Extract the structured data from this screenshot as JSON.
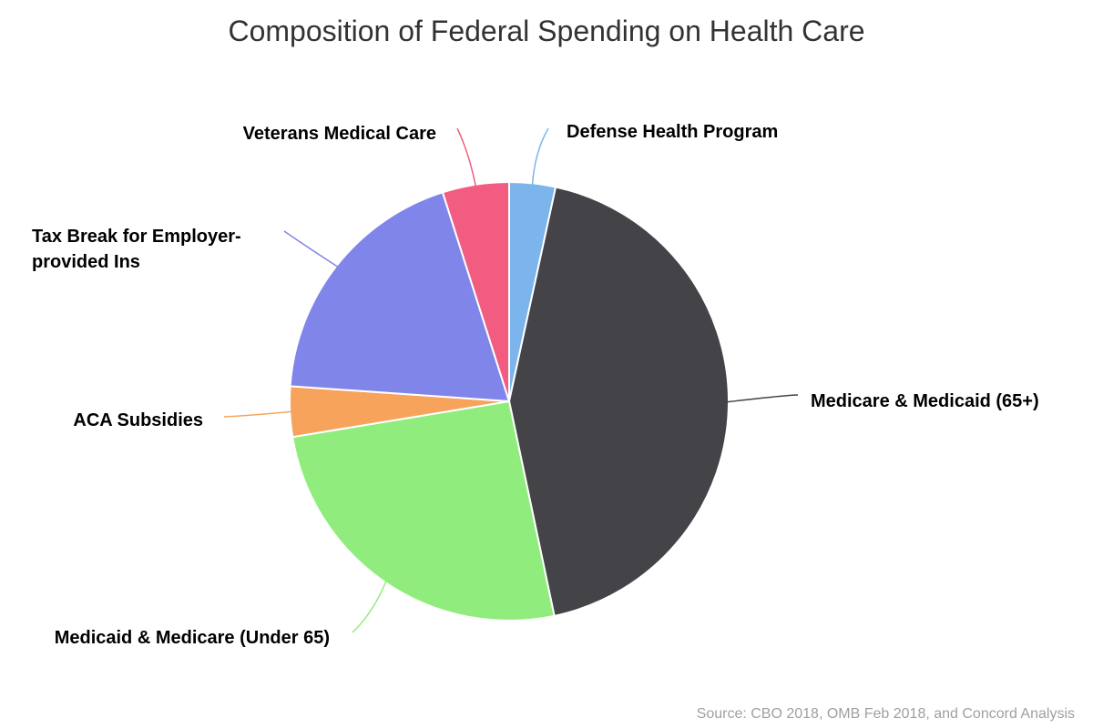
{
  "chart_data": {
    "type": "pie",
    "title": "Composition of Federal Spending on Health Care",
    "source": "Source: CBO 2018, OMB Feb 2018, and Concord Analysis",
    "legend": "none",
    "slices": [
      {
        "name": "Defense Health Program",
        "value": 3.4,
        "color": "#7cb5ec"
      },
      {
        "name": "Medicare & Medicaid (65+)",
        "value": 43.3,
        "color": "#434348"
      },
      {
        "name": "Medicaid & Medicare (Under 65)",
        "value": 25.7,
        "color": "#90ed7d"
      },
      {
        "name": "ACA Subsidies",
        "value": 3.7,
        "color": "#f7a35c"
      },
      {
        "name": "Tax Break for Employer-provided Ins",
        "value": 19.0,
        "color": "#8085e9"
      },
      {
        "name": "Veterans Medical Care",
        "value": 4.9,
        "color": "#f15c80"
      }
    ]
  }
}
